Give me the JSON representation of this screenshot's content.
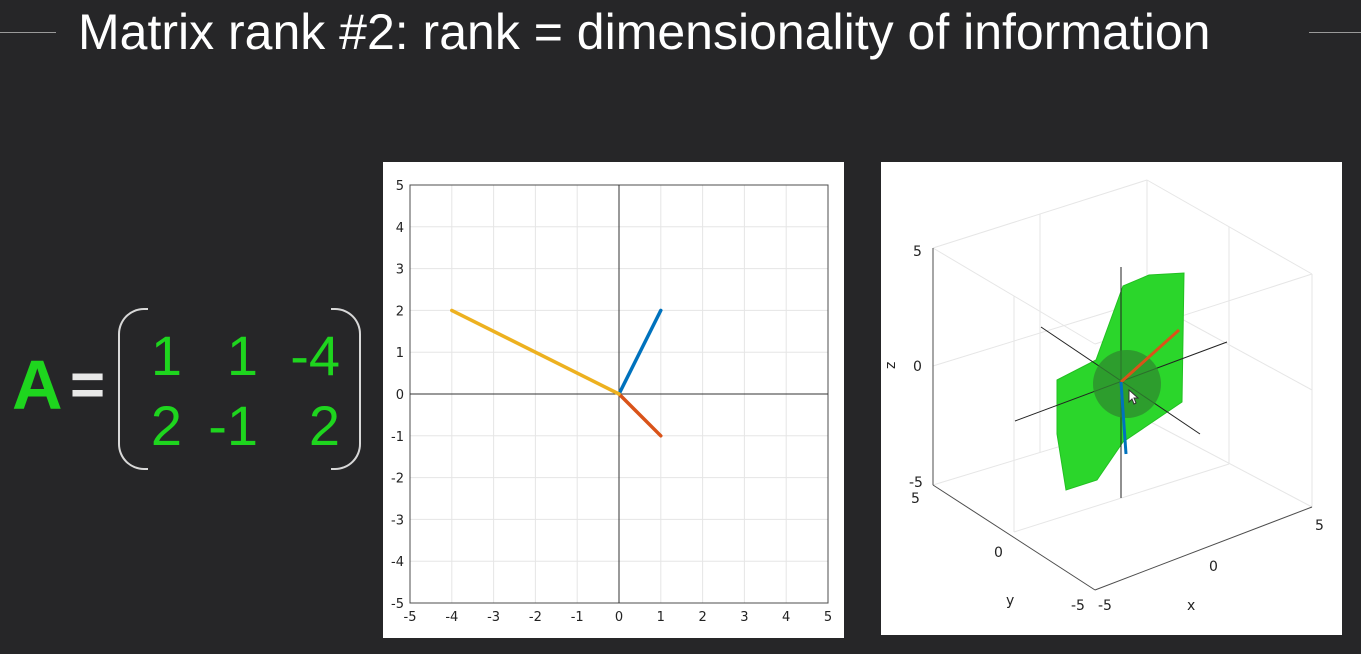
{
  "title": "Matrix rank #2: rank = dimensionality of information",
  "matrix": {
    "label": "A",
    "equals": "=",
    "rows": [
      [
        "1",
        "1",
        "-4"
      ],
      [
        "2",
        "-1",
        "2"
      ]
    ],
    "color": "#1ed51e"
  },
  "chart_data": [
    {
      "type": "line",
      "title": "",
      "xlabel": "",
      "ylabel": "",
      "xlim": [
        -5,
        5
      ],
      "ylim": [
        -5,
        5
      ],
      "grid": true,
      "x_ticks": [
        "-5",
        "-4",
        "-3",
        "-2",
        "-1",
        "0",
        "1",
        "2",
        "3",
        "4",
        "5"
      ],
      "y_ticks": [
        "5",
        "4",
        "3",
        "2",
        "1",
        "0",
        "-1",
        "-2",
        "-3",
        "-4",
        "-5"
      ],
      "series": [
        {
          "color": "#0072bd",
          "x": [
            0,
            1
          ],
          "y": [
            0,
            2
          ]
        },
        {
          "color": "#d95319",
          "x": [
            0,
            1
          ],
          "y": [
            0,
            -1
          ]
        },
        {
          "color": "#edb120",
          "x": [
            0,
            -4
          ],
          "y": [
            0,
            2
          ]
        }
      ]
    },
    {
      "type": "3d-plane",
      "xlabel": "x",
      "ylabel": "y",
      "zlabel": "z",
      "z_ticks": [
        "5",
        "0",
        "-5"
      ],
      "y_ticks": [
        "5",
        "0",
        "-5"
      ],
      "x_ticks": [
        "-5",
        "0",
        "5"
      ],
      "plane_color": "#2bd62b"
    }
  ]
}
